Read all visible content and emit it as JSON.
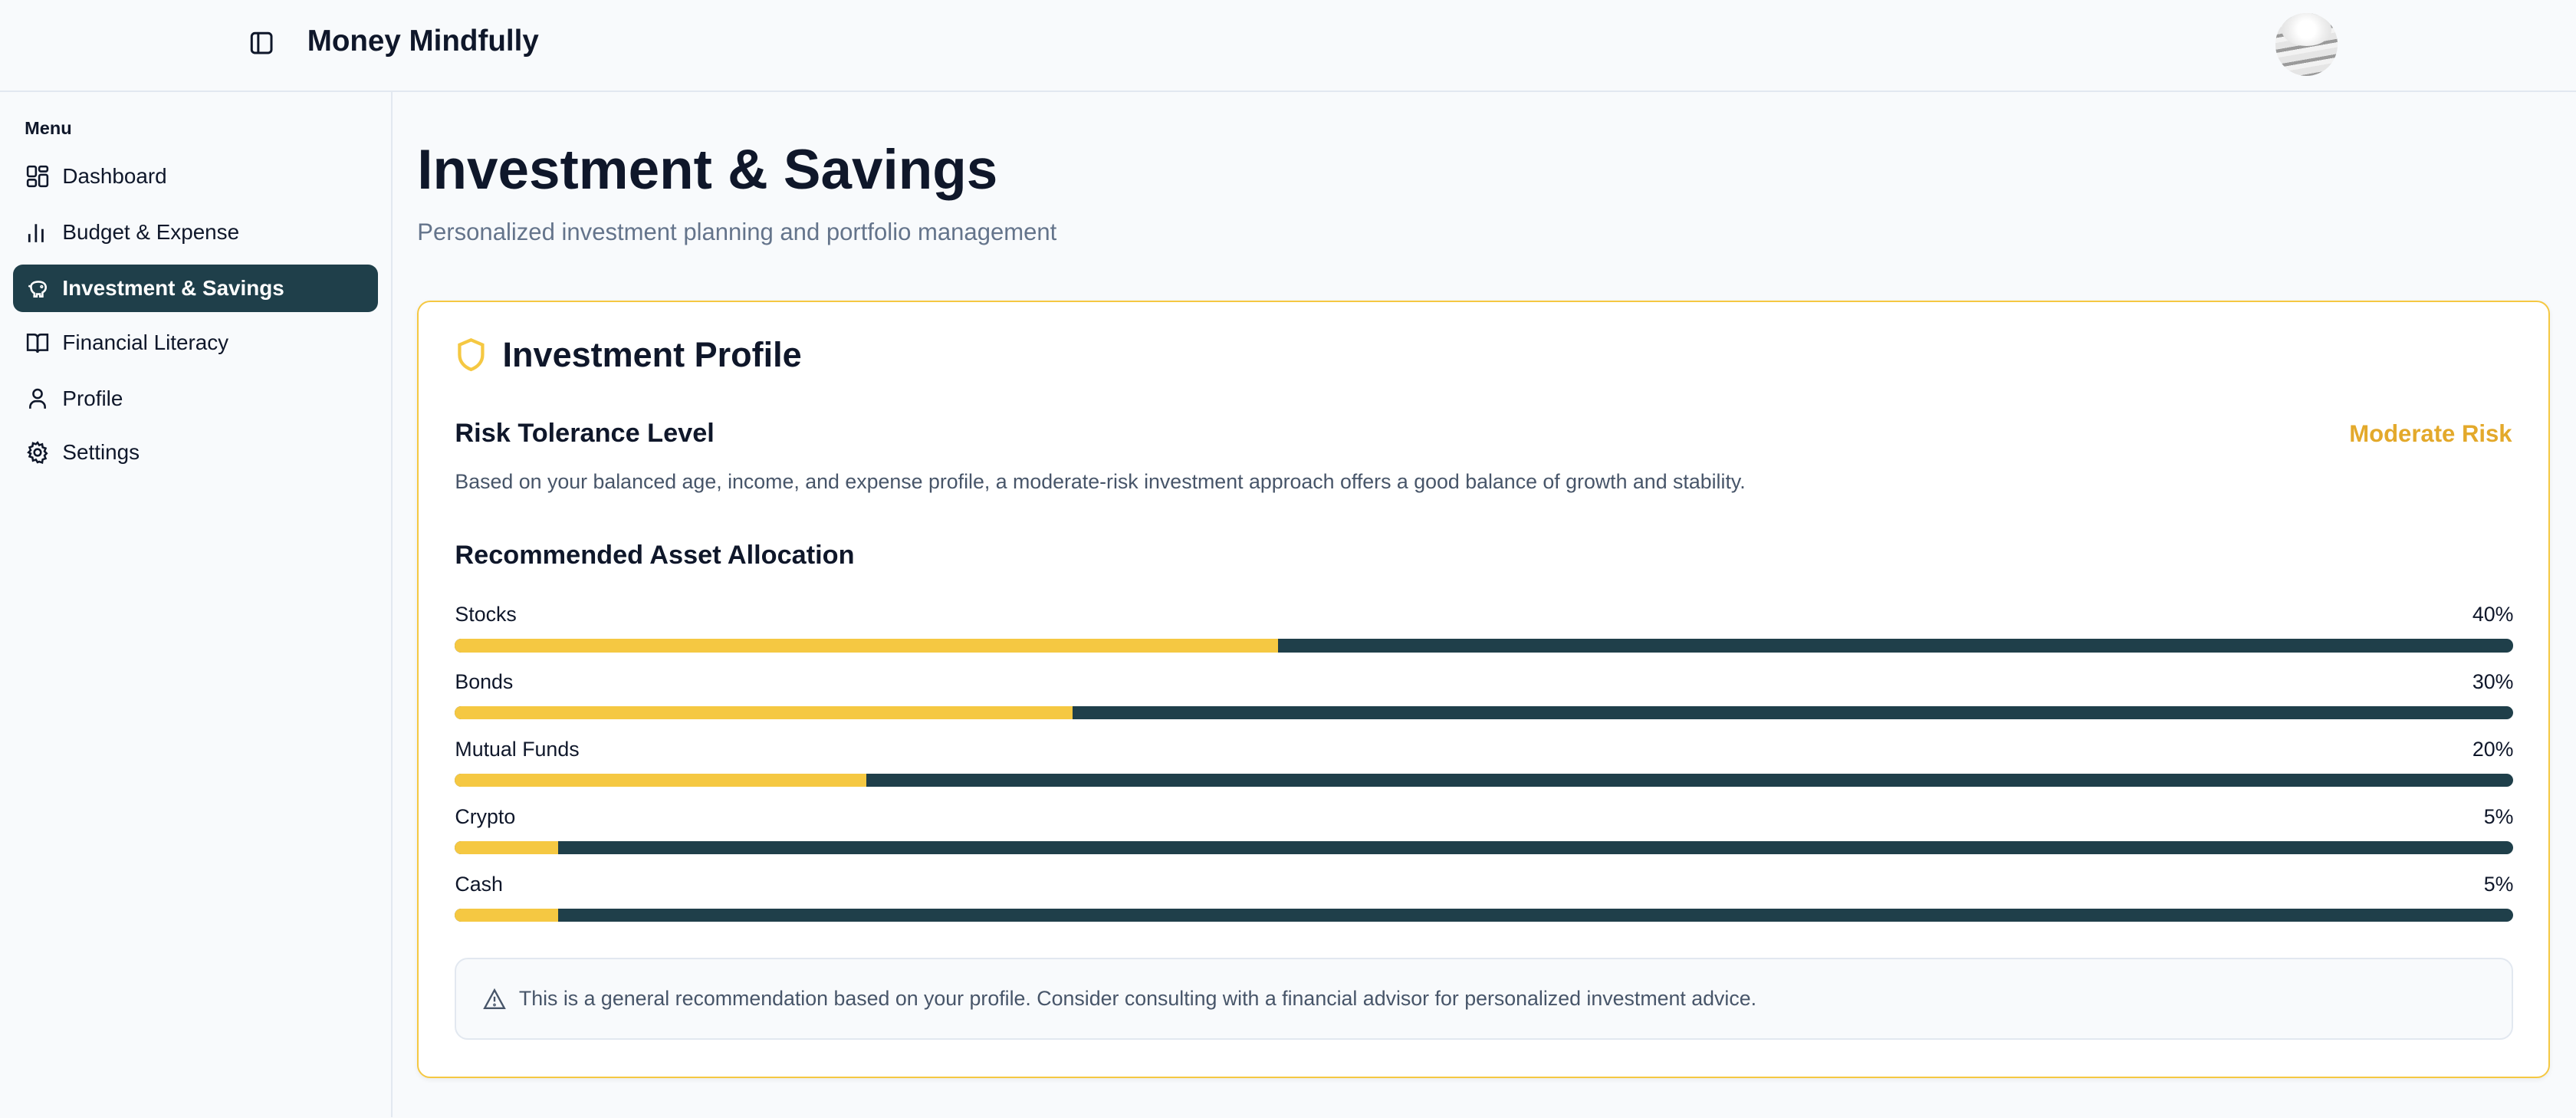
{
  "header": {
    "app_title": "Money Mindfully",
    "avatar_alt": "User avatar"
  },
  "sidebar": {
    "menu_label": "Menu",
    "items": [
      {
        "label": "Dashboard",
        "icon": "dashboard-icon"
      },
      {
        "label": "Budget & Expense",
        "icon": "bar-chart-icon"
      },
      {
        "label": "Investment & Savings",
        "icon": "piggy-bank-icon",
        "active": true
      },
      {
        "label": "Financial Literacy",
        "icon": "book-icon"
      },
      {
        "label": "Profile",
        "icon": "user-icon"
      },
      {
        "label": "Settings",
        "icon": "gear-icon"
      }
    ]
  },
  "page": {
    "title": "Investment & Savings",
    "subtitle": "Personalized investment planning and portfolio management"
  },
  "profile": {
    "heading": "Investment Profile",
    "risk_title": "Risk Tolerance Level",
    "risk_value": "Moderate Risk",
    "risk_description": "Based on your balanced age, income, and expense profile, a moderate-risk investment approach offers a good balance of growth and stability.",
    "allocation_title": "Recommended Asset Allocation",
    "allocation": [
      {
        "label": "Stocks",
        "percent": 40,
        "percent_label": "40%"
      },
      {
        "label": "Bonds",
        "percent": 30,
        "percent_label": "30%"
      },
      {
        "label": "Mutual Funds",
        "percent": 20,
        "percent_label": "20%"
      },
      {
        "label": "Crypto",
        "percent": 5,
        "percent_label": "5%"
      },
      {
        "label": "Cash",
        "percent": 5,
        "percent_label": "5%"
      }
    ],
    "disclaimer": "This is a general recommendation based on your profile. Consider consulting with a financial advisor for personalized investment advice."
  },
  "colors": {
    "accent": "#f5c842",
    "primary": "#1f3f4a",
    "risk_text": "#e3a92b"
  }
}
